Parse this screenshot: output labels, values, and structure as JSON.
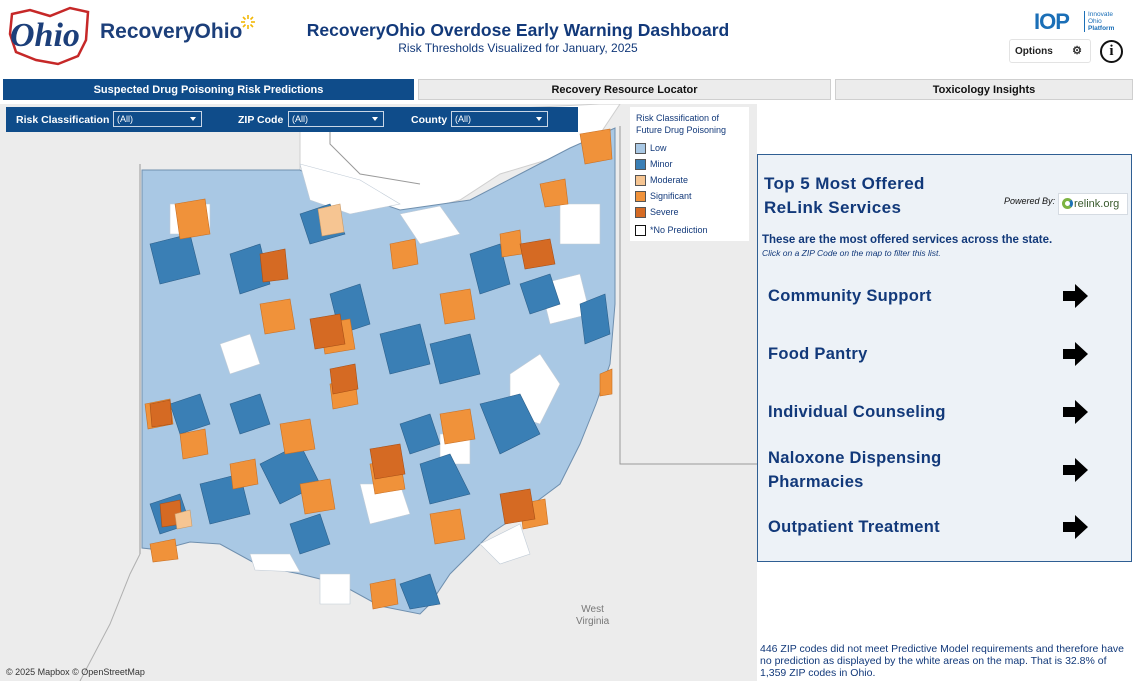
{
  "header": {
    "logo_ohio_text": "Ohio",
    "logo_brand": "RecoveryOhio",
    "title": "RecoveryOhio Overdose Early Warning Dashboard",
    "subtitle": "Risk Thresholds Visualized for January, 2025",
    "iop_logo": "IOP",
    "iop_line1": "Innovate",
    "iop_line2": "Ohio",
    "iop_line3": "Platform",
    "options_label": "Options",
    "info_label": "i"
  },
  "tabs": [
    {
      "label": "Suspected Drug Poisoning Risk Predictions",
      "active": true
    },
    {
      "label": "Recovery Resource Locator",
      "active": false
    },
    {
      "label": "Toxicology Insights",
      "active": false
    }
  ],
  "filters": {
    "risk_label": "Risk Classification",
    "risk_value": "(All)",
    "zip_label": "ZIP Code",
    "zip_value": "(All)",
    "county_label": "County",
    "county_value": "(All)"
  },
  "legend": {
    "title_line1": "Risk Classification of",
    "title_line2": "Future Drug Poisoning",
    "items": [
      {
        "label": "Low",
        "color": "#a9c8e4"
      },
      {
        "label": "Minor",
        "color": "#3a7fb5"
      },
      {
        "label": "Moderate",
        "color": "#f6c592"
      },
      {
        "label": "Significant",
        "color": "#f0923a"
      },
      {
        "label": "Severe",
        "color": "#d56a23"
      },
      {
        "label": "*No Prediction",
        "color": "#ffffff"
      }
    ]
  },
  "map": {
    "attribution": "© 2025 Mapbox  © OpenStreetMap",
    "region_label_1": "West",
    "region_label_2": "Virginia"
  },
  "panel": {
    "title_line1": "Top 5 Most Offered",
    "title_line2": "ReLink Services",
    "powered_by": "Powered By:",
    "relink_logo": "relink.org",
    "description": "These are the most offered services across the state.",
    "instruction": "Click on a ZIP Code on the map to filter this list.",
    "services": [
      {
        "line1": "Community Support",
        "line2": ""
      },
      {
        "line1": "Food Pantry",
        "line2": ""
      },
      {
        "line1": "Individual Counseling",
        "line2": ""
      },
      {
        "line1": "Naloxone Dispensing",
        "line2": "Pharmacies"
      },
      {
        "line1": "Outpatient Treatment",
        "line2": ""
      }
    ]
  },
  "footnote": "446 ZIP codes did not meet Predictive Model requirements and therefore have no prediction as displayed by the white areas on the map. That is 32.8% of 1,359 ZIP codes in Ohio."
}
